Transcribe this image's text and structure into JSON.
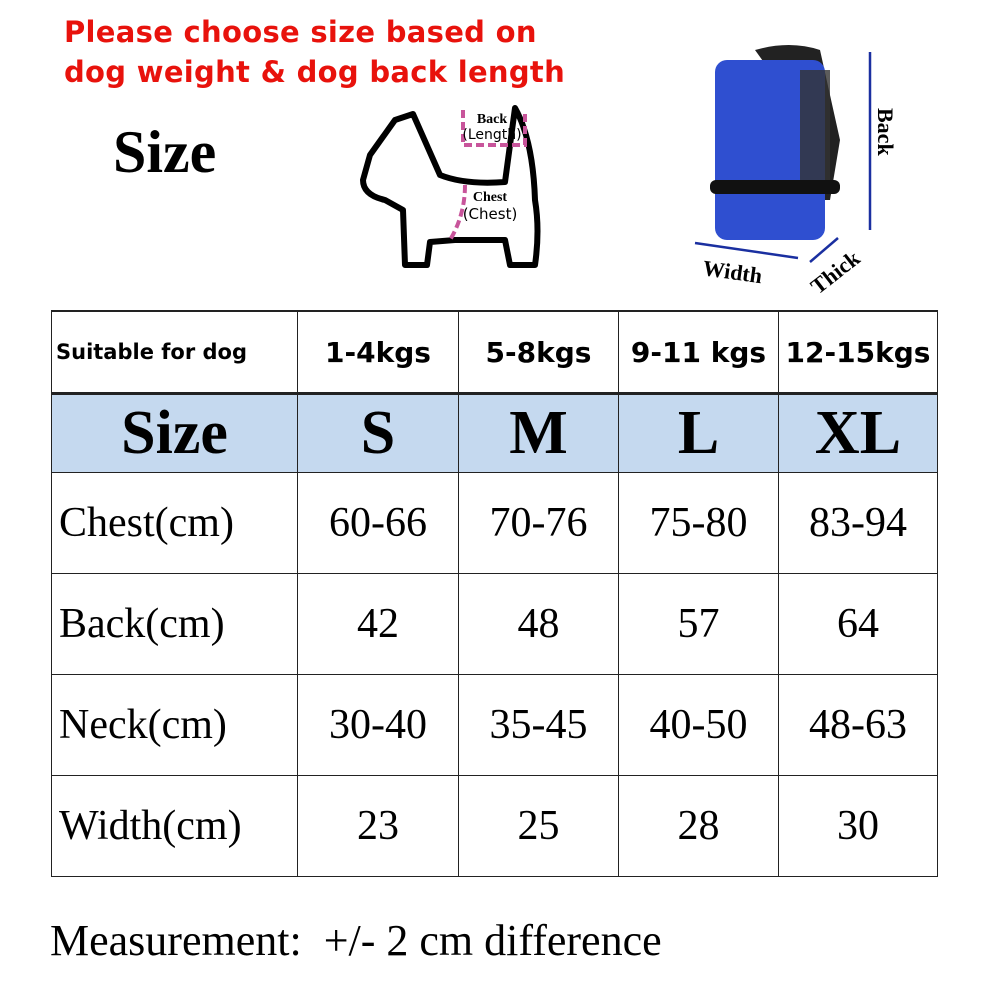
{
  "headline": [
    "Please choose size based on",
    "dog weight & dog back length"
  ],
  "size_title": "Size",
  "dog_diagram": {
    "back_label": "Back",
    "back_sub": "(Length)",
    "chest_label": "Chest",
    "chest_sub": "(Chest)"
  },
  "backpack_diagram": {
    "back": "Back",
    "width": "Width",
    "thick": "Thick",
    "color": "#2f4fd0"
  },
  "table": {
    "weight_row": {
      "label": "Suitable for dog",
      "values": [
        "1-4kgs",
        "5-8kgs",
        "9-11 kgs",
        "12-15kgs"
      ]
    },
    "size_row": {
      "label": "Size",
      "values": [
        "S",
        "M",
        "L",
        "XL"
      ]
    },
    "rows": [
      {
        "label": "Chest(cm)",
        "values": [
          "60-66",
          "70-76",
          "75-80",
          "83-94"
        ]
      },
      {
        "label": "Back(cm)",
        "values": [
          "42",
          "48",
          "57",
          "64"
        ]
      },
      {
        "label": "Neck(cm)",
        "values": [
          "30-40",
          "35-45",
          "40-50",
          "48-63"
        ]
      },
      {
        "label": "Width(cm)",
        "values": [
          "23",
          "25",
          "28",
          "30"
        ]
      }
    ],
    "header_bg": "#c5d9ef"
  },
  "footer": "Measurement:  +/- 2 cm difference"
}
